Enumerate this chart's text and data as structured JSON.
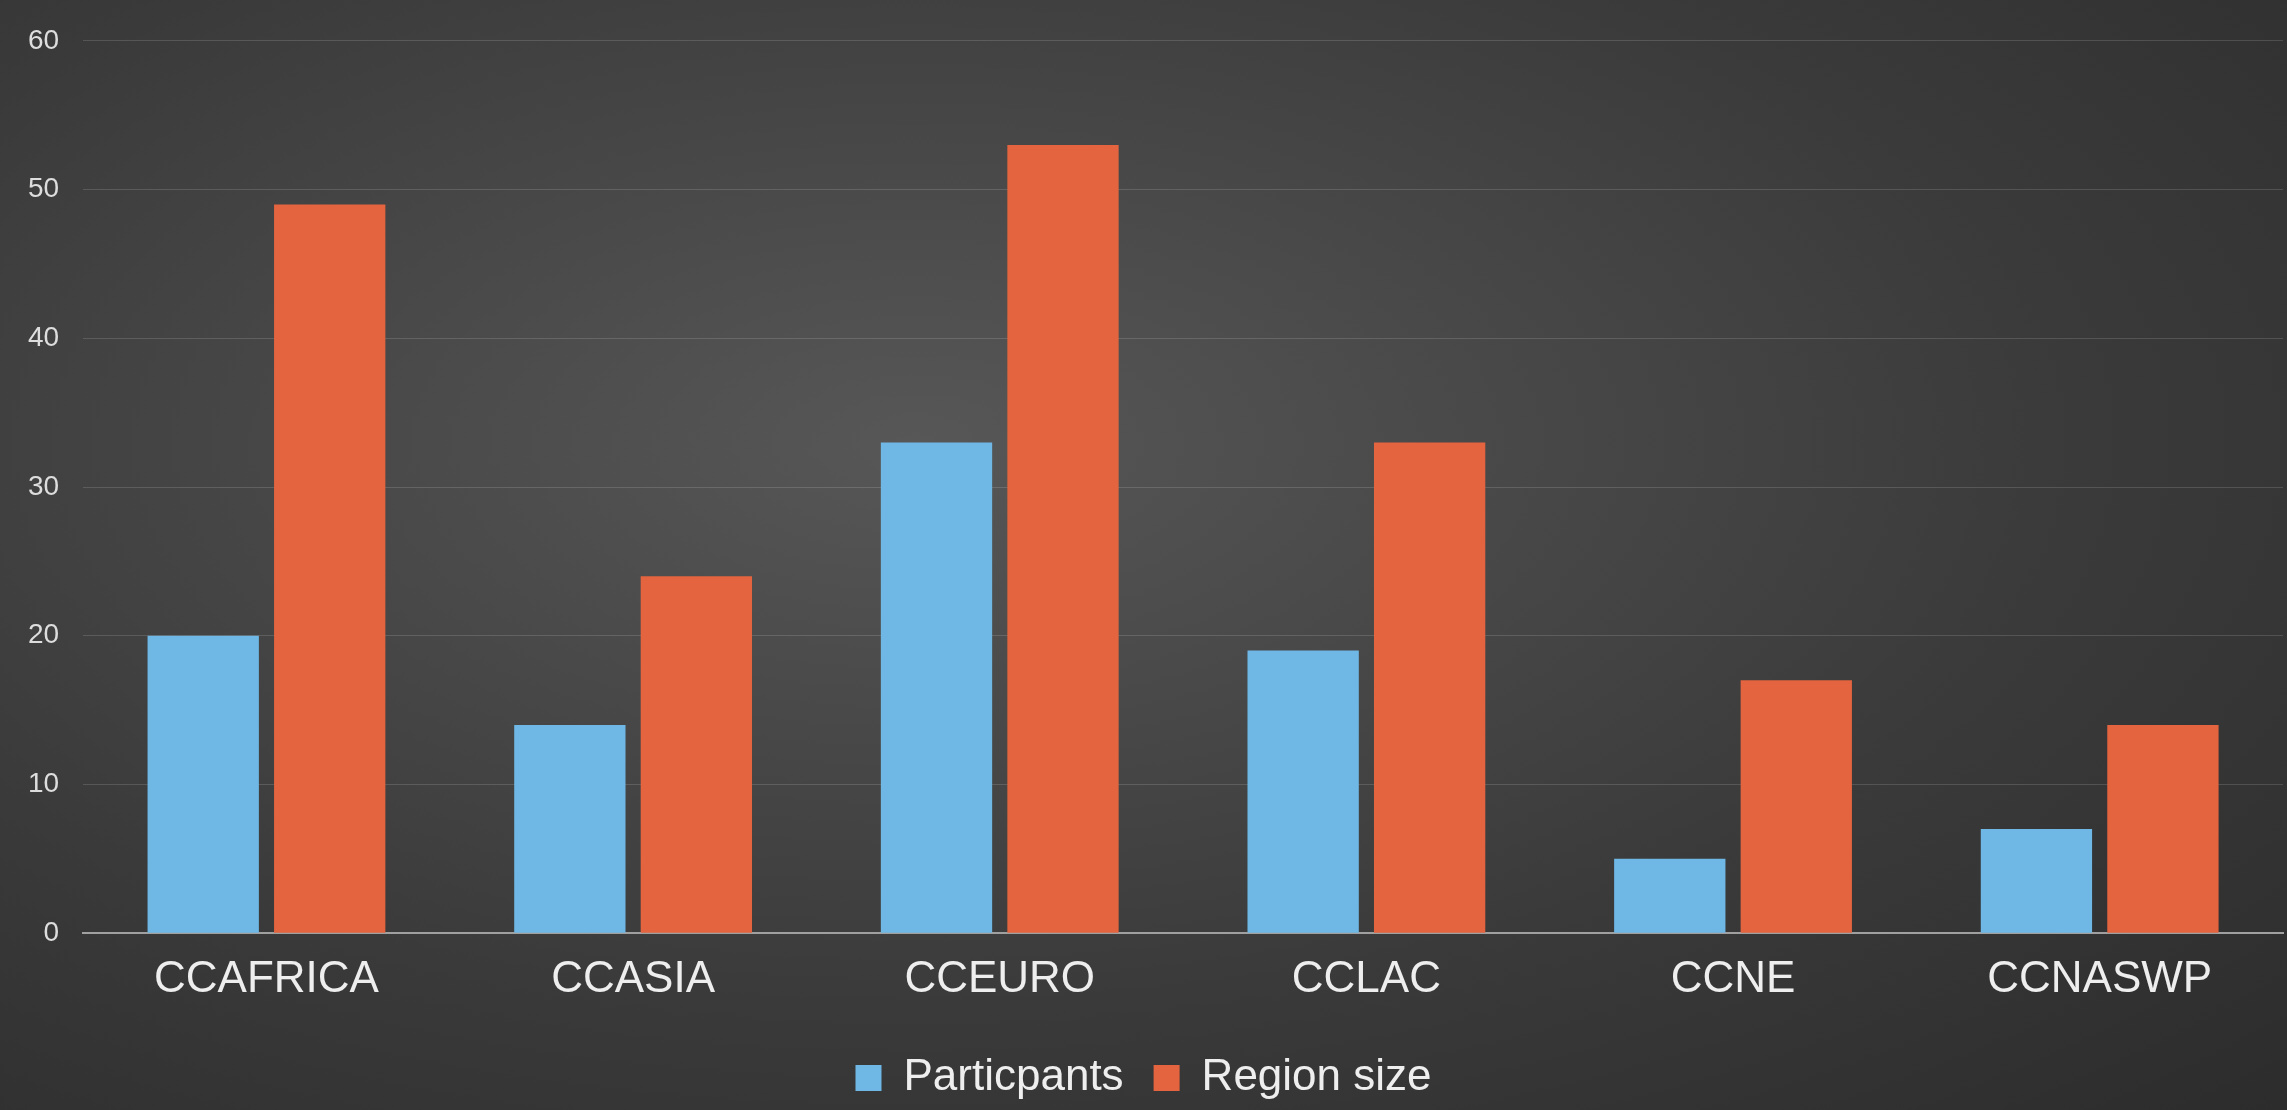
{
  "chart_data": {
    "type": "bar",
    "categories": [
      "CCAFRICA",
      "CCASIA",
      "CCEURO",
      "CCLAC",
      "CCNE",
      "CCNASWP"
    ],
    "series": [
      {
        "name": "Particpants",
        "color": "#6fb8e6",
        "values": [
          20,
          14,
          33,
          19,
          5,
          7
        ]
      },
      {
        "name": "Region size",
        "color": "#e3643f",
        "values": [
          49,
          24,
          53,
          33,
          17,
          14
        ]
      }
    ],
    "ylim": [
      0,
      60
    ],
    "yticks": [
      0,
      10,
      20,
      30,
      40,
      50,
      60
    ],
    "grid": "y",
    "legend": "bottom"
  }
}
